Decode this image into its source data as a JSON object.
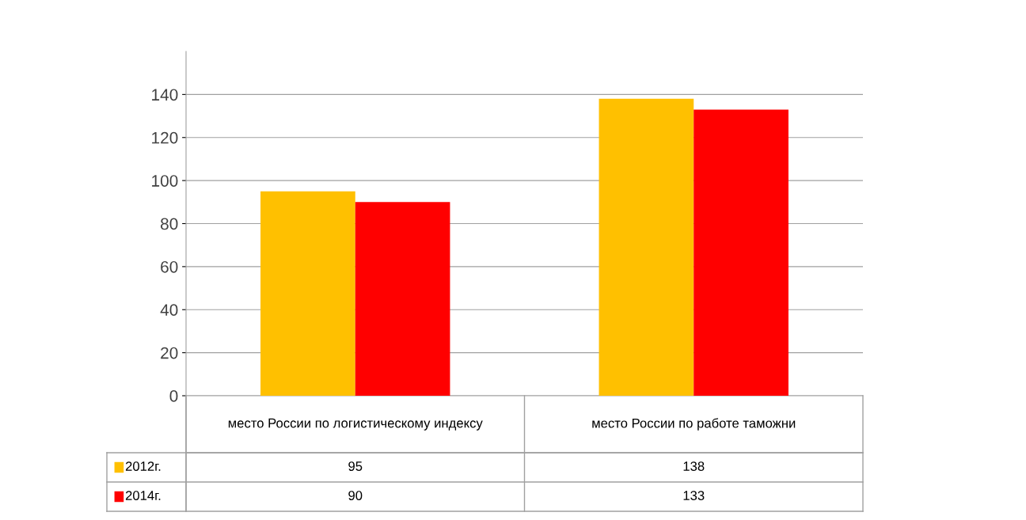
{
  "chart_data": {
    "type": "bar",
    "categories": [
      "место России по логистическому индексу",
      "место России по работе таможни"
    ],
    "series": [
      {
        "name": "2012г.",
        "color": "#ffc000",
        "values": [
          95,
          138
        ]
      },
      {
        "name": "2014г.",
        "color": "#ff0000",
        "values": [
          90,
          133
        ]
      }
    ],
    "ylim": [
      0,
      160
    ],
    "yticks": [
      0,
      20,
      40,
      60,
      80,
      100,
      120,
      140
    ],
    "grid": "y",
    "legend": "bottom",
    "data_labels": true
  }
}
